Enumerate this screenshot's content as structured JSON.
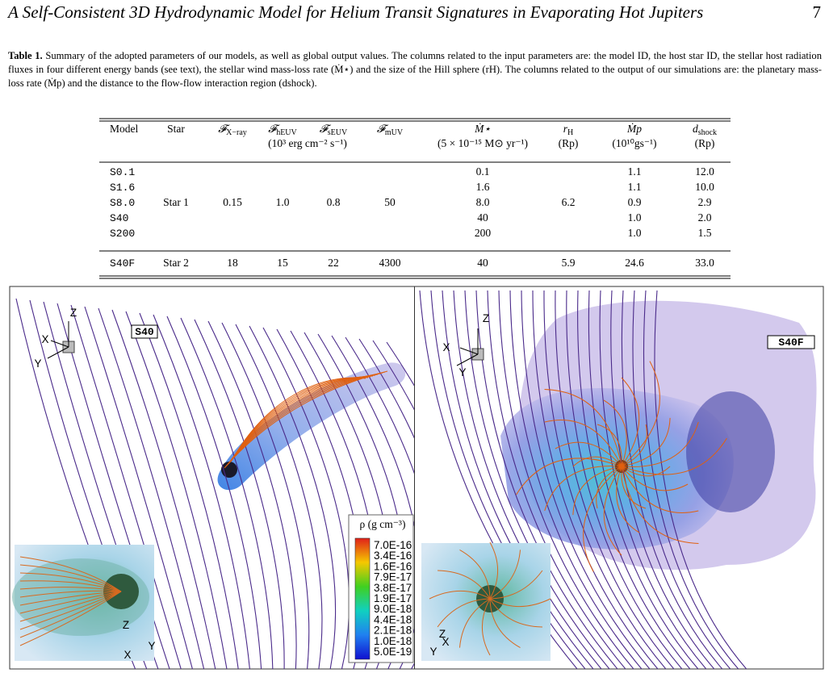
{
  "header": {
    "title": "A Self-Consistent 3D Hydrodynamic Model for Helium Transit Signatures in Evaporating Hot Jupiters",
    "page_number": "7"
  },
  "table": {
    "label": "Table 1.",
    "caption": "Summary of the adopted parameters of our models, as well as global output values. The columns related to the input parameters are: the model ID, the host star ID, the stellar host radiation fluxes in four different energy bands (see text), the stellar wind mass-loss rate (Ṁ⋆) and the size of the Hill sphere (rH). The columns related to the output of our simulations are: the planetary mass-loss rate (Ṁp) and the distance to the flow-flow interaction region (dshock).",
    "columns": [
      {
        "name": "Model"
      },
      {
        "name": "Star"
      },
      {
        "name": "𝓕",
        "sub": "X−ray"
      },
      {
        "name": "𝓕",
        "sub": "hEUV",
        "unit": "(10³ erg cm⁻² s⁻¹)"
      },
      {
        "name": "𝓕",
        "sub": "sEUV"
      },
      {
        "name": "𝓕",
        "sub": "mUV"
      },
      {
        "name": "Ṁ⋆",
        "unit": "(5 × 10⁻¹⁵ M⊙ yr⁻¹)"
      },
      {
        "name": "r",
        "sub": "H",
        "unit": "(Rp)"
      },
      {
        "name": "Ṁp",
        "unit": "(10¹⁰gs⁻¹)"
      },
      {
        "name": "d",
        "sub": "shock",
        "unit": "(Rp)"
      }
    ],
    "rows": [
      [
        "S0.1",
        null,
        null,
        null,
        null,
        null,
        "0.1",
        null,
        "1.1",
        "12.0"
      ],
      [
        "S1.6",
        null,
        null,
        null,
        null,
        null,
        "1.6",
        null,
        "1.1",
        "10.0"
      ],
      [
        "S8.0",
        "Star 1",
        "0.15",
        "1.0",
        "0.8",
        "50",
        "8.0",
        "6.2",
        "0.9",
        "2.9"
      ],
      [
        "S40",
        null,
        null,
        null,
        null,
        null,
        "40",
        null,
        "1.0",
        "2.0"
      ],
      [
        "S200",
        null,
        null,
        null,
        null,
        null,
        "200",
        null,
        "1.0",
        "1.5"
      ],
      [
        "S40F",
        "Star 2",
        "18",
        "15",
        "22",
        "4300",
        "40",
        "5.9",
        "24.6",
        "33.0"
      ]
    ]
  },
  "figure": {
    "panels": [
      {
        "label": "S40",
        "axes": [
          "Z",
          "X",
          "Y"
        ],
        "inset_axes": [
          "Z",
          "Y",
          "X"
        ]
      },
      {
        "label": "S40F",
        "axes": [
          "Z",
          "X",
          "Y"
        ],
        "inset_axes": [
          "Z",
          "X",
          "Y"
        ]
      }
    ],
    "colorbar": {
      "title": "ρ (g cm⁻³)",
      "labels": [
        "7.0E-16",
        "3.4E-16",
        "1.6E-16",
        "7.9E-17",
        "3.8E-17",
        "1.9E-17",
        "9.0E-18",
        "4.4E-18",
        "2.1E-18",
        "1.0E-18",
        "5.0E-19"
      ]
    }
  }
}
